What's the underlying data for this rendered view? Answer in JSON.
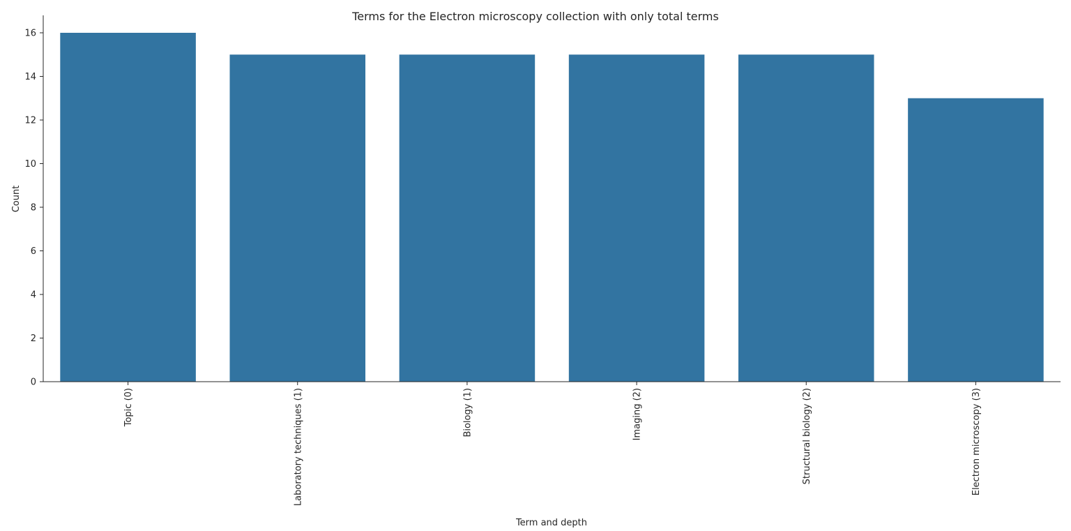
{
  "chart_data": {
    "type": "bar",
    "title": "Terms for the Electron microscopy collection with only total terms",
    "xlabel": "Term and depth",
    "ylabel": "Count",
    "categories": [
      "Topic (0)",
      "Laboratory techniques (1)",
      "Biology (1)",
      "Imaging (2)",
      "Structural biology (2)",
      "Electron microscopy (3)"
    ],
    "values": [
      16,
      15,
      15,
      15,
      15,
      13
    ],
    "ylim": [
      0,
      16.8
    ],
    "yticks": [
      0,
      2,
      4,
      6,
      8,
      10,
      12,
      14,
      16
    ],
    "grid": false,
    "legend": "none",
    "bar_color": "#3274a1",
    "axis_color": "#262626"
  }
}
